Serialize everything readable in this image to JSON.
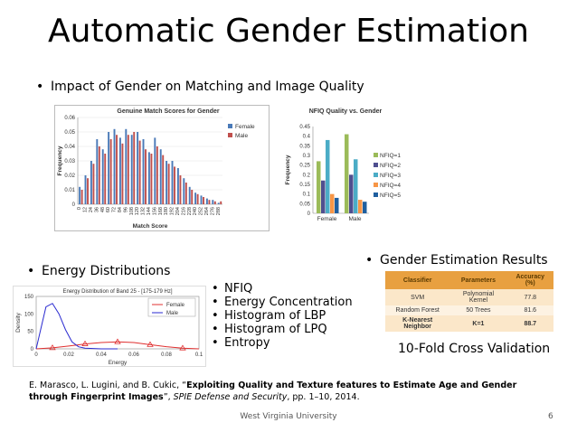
{
  "slide": {
    "title": "Automatic Gender Estimation",
    "bullet_impact": "Impact of Gender on Matching and Image Quality",
    "bullet_energy": "Energy Distributions",
    "bullet_results": "Gender Estimation Results",
    "features": [
      "NFIQ",
      "Energy Concentration",
      "Histogram of LBP",
      "Histogram of LPQ",
      "Entropy"
    ],
    "cross_validation": "10-Fold Cross Validation",
    "reference": {
      "authors": "E. Marasco, L. Lugini, and B. Cukic, “",
      "paper_title": "Exploiting Quality and Texture features to Estimate Age and Gender through Fingerprint Images",
      "mid": "”, ",
      "venue": "SPIE Defense and Security",
      "tail": ", pp. 1–10, 2014."
    },
    "footer": "West Virginia University",
    "page_number": "6"
  },
  "results_table": {
    "headers": [
      "Classifier",
      "Parameters",
      "Accuracy (%)"
    ],
    "rows": [
      [
        "SVM",
        "Polynomial Kernel",
        "77.8"
      ],
      [
        "Random Forest",
        "50 Trees",
        "81.6"
      ],
      [
        "K-Nearest Neighbor",
        "K=1",
        "88.7"
      ]
    ]
  },
  "colors": {
    "female": "#4a7ab8",
    "male": "#c0504d",
    "nfiq1": "#9bbb59",
    "nfiq2": "#4f4f8f",
    "nfiq3": "#4bacc6",
    "nfiq4": "#f79646",
    "nfiq5": "#1f5f9f"
  },
  "chart_data": [
    {
      "type": "bar",
      "title": "Genuine Match Scores for Gender",
      "xlabel": "Match Score",
      "ylabel": "Frequency",
      "ylim": [
        0,
        0.06
      ],
      "yticks": [
        "0",
        "0.01",
        "0.02",
        "0.03",
        "0.04",
        "0.05",
        "0.06"
      ],
      "x_ticks": [
        "0",
        "12",
        "24",
        "36",
        "48",
        "60",
        "72",
        "84",
        "96",
        "108",
        "120",
        "132",
        "144",
        "156",
        "168",
        "180",
        "192",
        "204",
        "216",
        "228",
        "240",
        "252",
        "264",
        "276",
        "288"
      ],
      "legend": "right",
      "series": [
        {
          "name": "Female",
          "values": [
            0.012,
            0.02,
            0.03,
            0.045,
            0.038,
            0.05,
            0.052,
            0.046,
            0.052,
            0.048,
            0.05,
            0.045,
            0.036,
            0.046,
            0.038,
            0.03,
            0.03,
            0.025,
            0.018,
            0.012,
            0.008,
            0.006,
            0.004,
            0.003,
            0.001
          ]
        },
        {
          "name": "Male",
          "values": [
            0.01,
            0.018,
            0.028,
            0.04,
            0.035,
            0.045,
            0.048,
            0.042,
            0.048,
            0.05,
            0.044,
            0.038,
            0.035,
            0.04,
            0.034,
            0.028,
            0.026,
            0.02,
            0.015,
            0.01,
            0.007,
            0.005,
            0.003,
            0.002,
            0.002
          ]
        }
      ]
    },
    {
      "type": "bar",
      "title": "NFIQ Quality vs. Gender",
      "ylabel": "Frequency",
      "categories": [
        "Female",
        "Male"
      ],
      "ylim": [
        0,
        0.45
      ],
      "yticks": [
        "0",
        "0.05",
        "0.1",
        "0.15",
        "0.2",
        "0.25",
        "0.3",
        "0.35",
        "0.4",
        "0.45"
      ],
      "legend": "right",
      "series": [
        {
          "name": "NFIQ=1",
          "values": [
            0.27,
            0.41
          ]
        },
        {
          "name": "NFIQ=2",
          "values": [
            0.17,
            0.2
          ]
        },
        {
          "name": "NFIQ=3",
          "values": [
            0.38,
            0.28
          ]
        },
        {
          "name": "NFIQ=4",
          "values": [
            0.1,
            0.07
          ]
        },
        {
          "name": "NFIQ=5",
          "values": [
            0.08,
            0.06
          ]
        }
      ]
    },
    {
      "type": "line",
      "title": "Energy Distribution of Band 25 - [175-179 Hz]",
      "xlabel": "Energy",
      "ylabel": "Density",
      "xlim": [
        0,
        0.1
      ],
      "ylim": [
        0,
        150
      ],
      "xticks": [
        "0",
        "0.02",
        "0.04",
        "0.06",
        "0.08",
        "0.1"
      ],
      "yticks": [
        "0",
        "50",
        "100",
        "150"
      ],
      "legend": "top-right",
      "series": [
        {
          "name": "Female",
          "x": [
            0,
            0.01,
            0.02,
            0.03,
            0.04,
            0.05,
            0.06,
            0.07,
            0.08,
            0.09,
            0.1
          ],
          "y": [
            0,
            3,
            8,
            14,
            18,
            20,
            18,
            12,
            6,
            2,
            0
          ]
        },
        {
          "name": "Male",
          "x": [
            0,
            0.003,
            0.006,
            0.01,
            0.014,
            0.018,
            0.022,
            0.026,
            0.03,
            0.04,
            0.05
          ],
          "y": [
            0,
            60,
            120,
            130,
            100,
            55,
            20,
            6,
            2,
            0,
            0
          ]
        }
      ]
    }
  ]
}
